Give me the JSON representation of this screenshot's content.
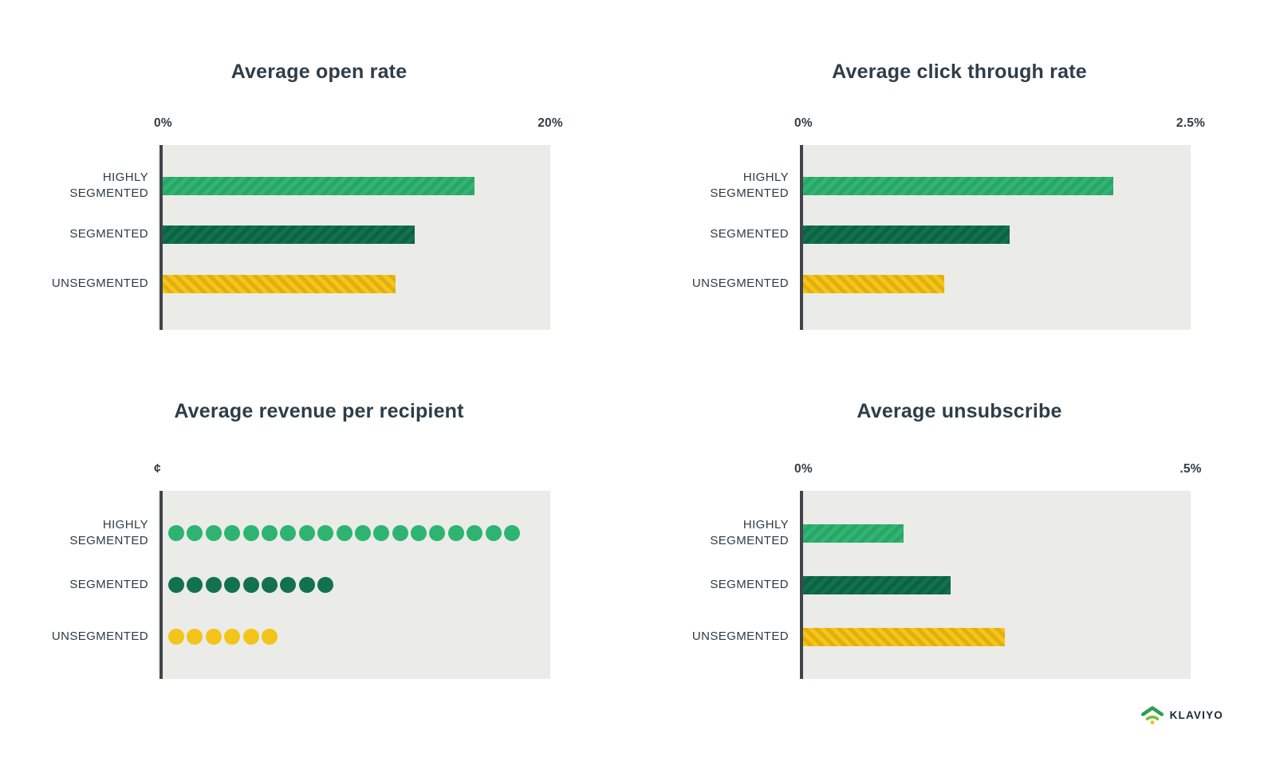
{
  "page": {
    "background": "#ffffff",
    "plot_background": "#ebebe7",
    "axis_color": "#3f454a",
    "text_color": "#2f3d49"
  },
  "categories": [
    {
      "id": "highly-segmented",
      "label": "HIGHLY\nSEGMENTED",
      "bar_color": "#30b573",
      "stripe_color": "#2aa567",
      "stripe_angle": "135deg",
      "dot_color": "#2db471"
    },
    {
      "id": "segmented",
      "label": "SEGMENTED",
      "bar_color": "#12714e",
      "stripe_color": "#0c6343",
      "stripe_angle": "135deg",
      "dot_color": "#12714e"
    },
    {
      "id": "unsegmented",
      "label": "UNSEGMENTED",
      "bar_color": "#f6c518",
      "stripe_color": "#e1b010",
      "stripe_angle": "45deg",
      "dot_color": "#f3c41a"
    }
  ],
  "chart_data": [
    {
      "type": "bar",
      "title": "Average open rate",
      "orientation": "horizontal",
      "categories": [
        "HIGHLY SEGMENTED",
        "SEGMENTED",
        "UNSEGMENTED"
      ],
      "values": [
        16.1,
        13.0,
        12.0
      ],
      "unit": "%",
      "xlim": [
        0,
        20
      ],
      "axis_min_label": "0%",
      "axis_max_label": "20%",
      "grid": false,
      "legend": "none"
    },
    {
      "type": "bar",
      "title": "Average click through rate",
      "orientation": "horizontal",
      "categories": [
        "HIGHLY SEGMENTED",
        "SEGMENTED",
        "UNSEGMENTED"
      ],
      "values": [
        2.0,
        1.33,
        0.91
      ],
      "unit": "%",
      "xlim": [
        0,
        2.5
      ],
      "axis_min_label": "0%",
      "axis_max_label": "2.5%",
      "grid": false,
      "legend": "none"
    },
    {
      "type": "pictogram",
      "title": "Average revenue per recipient",
      "orientation": "horizontal",
      "categories": [
        "HIGHLY SEGMENTED",
        "SEGMENTED",
        "UNSEGMENTED"
      ],
      "values": [
        19,
        9,
        6
      ],
      "unit": "cents",
      "axis_min_label": "¢",
      "grid": false,
      "legend": "none"
    },
    {
      "type": "bar",
      "title": "Average unsubscribe",
      "orientation": "horizontal",
      "categories": [
        "HIGHLY SEGMENTED",
        "SEGMENTED",
        "UNSEGMENTED"
      ],
      "values": [
        0.13,
        0.19,
        0.26
      ],
      "unit": "%",
      "xlim": [
        0,
        0.5
      ],
      "axis_min_label": "0%",
      "axis_max_label": ".5%",
      "grid": false,
      "legend": "none"
    }
  ],
  "brand": {
    "name": "KLAVIYO",
    "icon_roof_color": "#2e9e4f",
    "icon_arc_color": "#7dbe4a",
    "icon_dot_color": "#efc319",
    "text_color": "#1b2a32"
  }
}
